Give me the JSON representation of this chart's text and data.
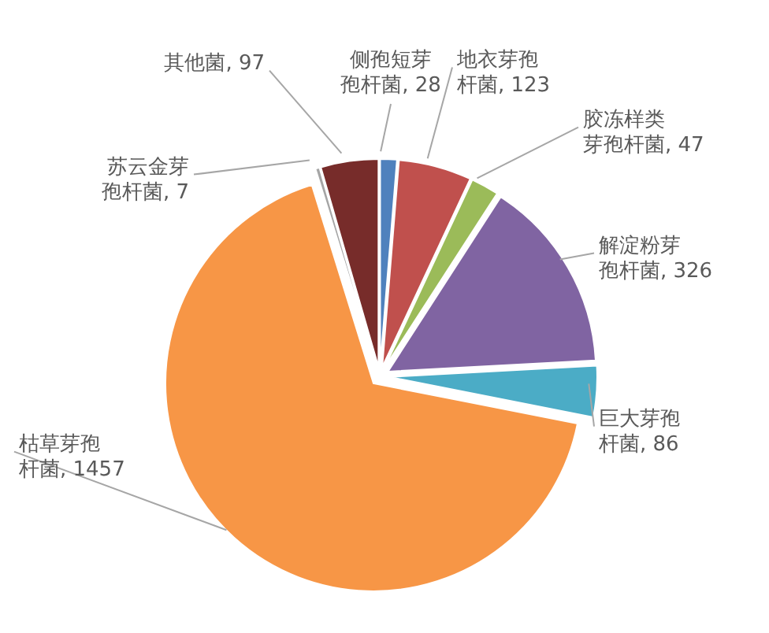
{
  "chart_data": {
    "type": "pie",
    "categories": [
      "侧孢短芽孢杆菌",
      "地衣芽孢杆菌",
      "胶冻样类芽孢杆菌",
      "解淀粉芽孢杆菌",
      "巨大芽孢杆菌",
      "枯草芽孢杆菌",
      "苏云金芽孢杆菌",
      "其他菌"
    ],
    "values": [
      28,
      123,
      47,
      326,
      86,
      1457,
      7,
      97
    ],
    "colors": [
      "#4f81bd",
      "#c0504d",
      "#9bbb59",
      "#8064a2",
      "#4bacc6",
      "#f79646",
      "#a5a5a5",
      "#772c2a"
    ],
    "value_labels": [
      ", 28",
      ", 123",
      ", 47",
      ", 326",
      ", 86",
      ", 1457",
      ", 7",
      ", 97"
    ],
    "legend": false
  }
}
